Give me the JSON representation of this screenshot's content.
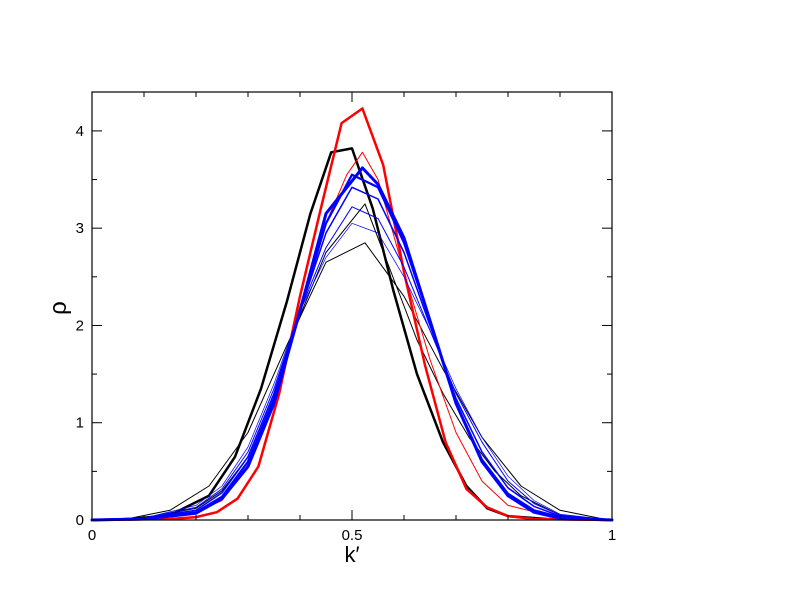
{
  "chart_data": {
    "type": "line",
    "xlabel": "k′",
    "ylabel": "ρ",
    "xlim": [
      0,
      1
    ],
    "ylim": [
      0,
      4.4
    ],
    "x_ticks": [
      0,
      0.5,
      1
    ],
    "x_tick_labels": [
      "0",
      "0.5",
      "1"
    ],
    "y_ticks": [
      0,
      1,
      2,
      3,
      4
    ],
    "y_tick_labels": [
      "0",
      "1",
      "2",
      "3",
      "4"
    ],
    "grid": false,
    "legend": "none",
    "series": [
      {
        "color": "#000000",
        "width": 1.0,
        "x": [
          0,
          0.075,
          0.15,
          0.225,
          0.3,
          0.375,
          0.45,
          0.525,
          0.6,
          0.675,
          0.75,
          0.825,
          0.9,
          0.975,
          1
        ],
        "y": [
          0,
          0.02,
          0.1,
          0.35,
          0.9,
          1.8,
          2.65,
          2.85,
          2.3,
          1.55,
          0.85,
          0.35,
          0.1,
          0.02,
          0
        ]
      },
      {
        "color": "#000000",
        "width": 1.0,
        "x": [
          0,
          0.1,
          0.2,
          0.25,
          0.3,
          0.35,
          0.4,
          0.45,
          0.525,
          0.575,
          0.625,
          0.675,
          0.725,
          0.775,
          0.825,
          0.9,
          1
        ],
        "y": [
          0,
          0.02,
          0.12,
          0.3,
          0.65,
          1.3,
          2.1,
          2.75,
          3.25,
          2.55,
          1.85,
          1.3,
          0.85,
          0.5,
          0.25,
          0.05,
          0
        ]
      },
      {
        "color": "#000000",
        "width": 2.5,
        "x": [
          0,
          0.075,
          0.15,
          0.225,
          0.275,
          0.325,
          0.375,
          0.42,
          0.46,
          0.5,
          0.54,
          0.58,
          0.625,
          0.675,
          0.72,
          0.76,
          0.8,
          0.875,
          1
        ],
        "y": [
          0,
          0.01,
          0.05,
          0.25,
          0.65,
          1.35,
          2.25,
          3.15,
          3.78,
          3.82,
          3.2,
          2.35,
          1.5,
          0.8,
          0.35,
          0.12,
          0.04,
          0.01,
          0
        ]
      },
      {
        "color": "#ff0000",
        "width": 1.0,
        "x": [
          0,
          0.1,
          0.2,
          0.25,
          0.3,
          0.35,
          0.4,
          0.45,
          0.49,
          0.52,
          0.55,
          0.6,
          0.65,
          0.7,
          0.75,
          0.8,
          0.9,
          1
        ],
        "y": [
          0,
          0.01,
          0.08,
          0.2,
          0.55,
          1.25,
          2.2,
          3.05,
          3.55,
          3.78,
          3.5,
          2.55,
          1.65,
          0.9,
          0.4,
          0.15,
          0.02,
          0
        ]
      },
      {
        "color": "#ff0000",
        "width": 2.5,
        "x": [
          0,
          0.15,
          0.2,
          0.24,
          0.28,
          0.32,
          0.36,
          0.4,
          0.44,
          0.48,
          0.52,
          0.56,
          0.6,
          0.64,
          0.68,
          0.72,
          0.76,
          0.8,
          0.85,
          1
        ],
        "y": [
          0,
          0.01,
          0.03,
          0.08,
          0.22,
          0.55,
          1.3,
          2.3,
          3.2,
          4.08,
          4.23,
          3.65,
          2.55,
          1.6,
          0.8,
          0.32,
          0.13,
          0.04,
          0.01,
          0
        ]
      },
      {
        "color": "#0000ff",
        "width": 0.7,
        "x": [
          0,
          0.1,
          0.2,
          0.25,
          0.3,
          0.35,
          0.4,
          0.45,
          0.5,
          0.55,
          0.6,
          0.65,
          0.7,
          0.75,
          0.8,
          0.85,
          0.9,
          1
        ],
        "y": [
          0,
          0.02,
          0.15,
          0.35,
          0.75,
          1.4,
          2.15,
          2.7,
          3.05,
          2.95,
          2.5,
          1.95,
          1.35,
          0.85,
          0.45,
          0.2,
          0.06,
          0
        ]
      },
      {
        "color": "#0000ff",
        "width": 1.0,
        "x": [
          0,
          0.1,
          0.2,
          0.25,
          0.3,
          0.35,
          0.4,
          0.45,
          0.5,
          0.55,
          0.6,
          0.65,
          0.7,
          0.75,
          0.8,
          0.85,
          0.9,
          1
        ],
        "y": [
          0,
          0.02,
          0.13,
          0.32,
          0.7,
          1.35,
          2.15,
          2.8,
          3.22,
          3.1,
          2.6,
          1.95,
          1.3,
          0.8,
          0.4,
          0.17,
          0.05,
          0
        ]
      },
      {
        "color": "#0000ff",
        "width": 1.5,
        "x": [
          0,
          0.1,
          0.2,
          0.25,
          0.3,
          0.35,
          0.4,
          0.45,
          0.5,
          0.55,
          0.6,
          0.65,
          0.7,
          0.75,
          0.8,
          0.85,
          0.9,
          1
        ],
        "y": [
          0,
          0.02,
          0.1,
          0.28,
          0.65,
          1.3,
          2.15,
          2.95,
          3.42,
          3.3,
          2.75,
          2.0,
          1.25,
          0.7,
          0.33,
          0.14,
          0.04,
          0
        ]
      },
      {
        "color": "#0000ff",
        "width": 2.2,
        "x": [
          0,
          0.1,
          0.2,
          0.25,
          0.3,
          0.35,
          0.4,
          0.45,
          0.5,
          0.55,
          0.6,
          0.65,
          0.7,
          0.75,
          0.8,
          0.85,
          0.9,
          1
        ],
        "y": [
          0,
          0.01,
          0.08,
          0.24,
          0.6,
          1.25,
          2.15,
          3.05,
          3.55,
          3.42,
          2.85,
          2.05,
          1.2,
          0.62,
          0.27,
          0.1,
          0.03,
          0
        ]
      },
      {
        "color": "#0000ff",
        "width": 3.0,
        "x": [
          0,
          0.1,
          0.2,
          0.25,
          0.3,
          0.35,
          0.4,
          0.45,
          0.52,
          0.55,
          0.6,
          0.65,
          0.7,
          0.75,
          0.8,
          0.85,
          0.9,
          1
        ],
        "y": [
          0,
          0.01,
          0.07,
          0.22,
          0.55,
          1.2,
          2.15,
          3.15,
          3.62,
          3.45,
          2.9,
          2.05,
          1.2,
          0.6,
          0.25,
          0.08,
          0.02,
          0
        ]
      }
    ]
  }
}
